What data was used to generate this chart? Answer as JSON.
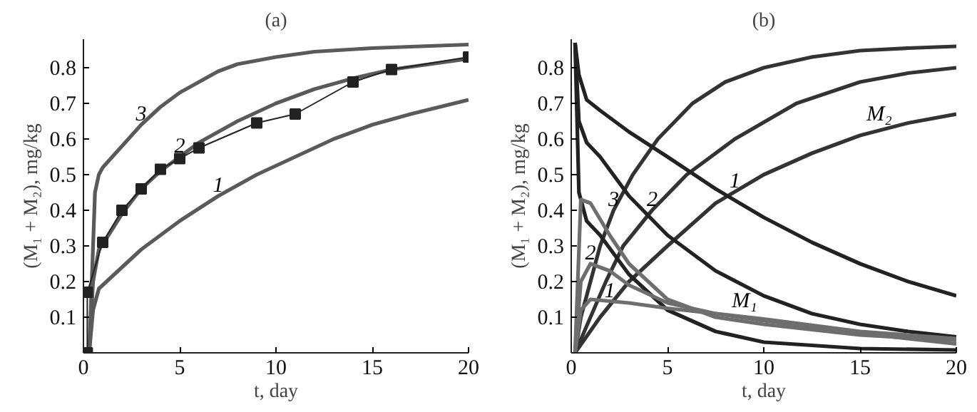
{
  "chart_data": [
    {
      "type": "line",
      "title": "(a)",
      "xlabel": "t, day",
      "ylabel": "(M₁ + M₂), mg/kg",
      "xlim": [
        0,
        20
      ],
      "ylim": [
        0,
        0.88
      ],
      "xticks": [
        0,
        5,
        10,
        15,
        20
      ],
      "yticks": [
        0.1,
        0.2,
        0.3,
        0.4,
        0.5,
        0.6,
        0.7,
        0.8
      ],
      "grid": false,
      "series": [
        {
          "color": "#5a5a5a",
          "x": [
            0.3,
            0.5,
            0.6,
            0.8,
            1,
            2,
            3,
            4,
            5,
            6,
            7,
            8,
            10,
            12,
            15,
            20
          ],
          "values": [
            0,
            0.3,
            0.45,
            0.5,
            0.52,
            0.58,
            0.64,
            0.69,
            0.73,
            0.76,
            0.79,
            0.81,
            0.83,
            0.845,
            0.855,
            0.865
          ]
        },
        {
          "color": "#5a5a5a",
          "x": [
            0.3,
            0.5,
            0.8,
            1.3,
            2,
            3,
            4,
            5,
            6,
            8,
            10,
            12,
            14,
            16,
            18,
            20
          ],
          "values": [
            0,
            0.2,
            0.29,
            0.33,
            0.39,
            0.46,
            0.51,
            0.55,
            0.59,
            0.65,
            0.7,
            0.74,
            0.77,
            0.795,
            0.81,
            0.825
          ]
        },
        {
          "color": "#5a5a5a",
          "x": [
            0.3,
            0.5,
            0.8,
            1.2,
            2,
            3,
            5,
            7,
            9,
            11,
            13,
            15,
            17,
            20
          ],
          "values": [
            0,
            0.12,
            0.18,
            0.2,
            0.24,
            0.29,
            0.37,
            0.44,
            0.5,
            0.55,
            0.6,
            0.64,
            0.67,
            0.71
          ]
        },
        {
          "color": "#222222",
          "marker": "square",
          "x": [
            0.2,
            0.2,
            1,
            2,
            3,
            4,
            5,
            6,
            9,
            11,
            14,
            16,
            20
          ],
          "values": [
            0,
            0.17,
            0.31,
            0.4,
            0.46,
            0.515,
            0.545,
            0.575,
            0.645,
            0.67,
            0.76,
            0.795,
            0.83
          ]
        }
      ],
      "annotations": [
        {
          "text": "3",
          "x": 3,
          "y": 0.64
        },
        {
          "text": "2",
          "x": 5,
          "y": 0.55
        },
        {
          "text": "1",
          "x": 7,
          "y": 0.44
        }
      ]
    },
    {
      "type": "line",
      "title": "(b)",
      "xlabel": "t, day",
      "ylabel": "(M₁ + M₂), mg/kg",
      "xlim": [
        0,
        20
      ],
      "ylim": [
        0,
        0.88
      ],
      "xticks": [
        0,
        5,
        10,
        15,
        20
      ],
      "yticks": [
        0.1,
        0.2,
        0.3,
        0.4,
        0.5,
        0.6,
        0.7,
        0.8
      ],
      "grid": false,
      "series": [
        {
          "color": "#333333",
          "x": [
            0.2,
            0.5,
            1,
            1.5,
            2.2,
            3.2,
            4.5,
            6.3,
            8,
            10,
            12.5,
            15,
            17.5,
            20
          ],
          "values": [
            0,
            0.1,
            0.2,
            0.3,
            0.4,
            0.5,
            0.6,
            0.7,
            0.76,
            0.8,
            0.83,
            0.848,
            0.855,
            0.86
          ]
        },
        {
          "color": "#333333",
          "x": [
            0.2,
            1,
            1.8,
            2.7,
            4.2,
            6,
            8.5,
            11.7,
            15,
            17.5,
            20
          ],
          "values": [
            0,
            0.1,
            0.2,
            0.3,
            0.4,
            0.5,
            0.6,
            0.7,
            0.76,
            0.785,
            0.8
          ]
        },
        {
          "color": "#333333",
          "x": [
            0.2,
            1.5,
            3,
            5,
            7.5,
            10,
            12.5,
            15,
            17.5,
            20
          ],
          "values": [
            0,
            0.1,
            0.2,
            0.3,
            0.42,
            0.5,
            0.56,
            0.61,
            0.645,
            0.67
          ]
        },
        {
          "color": "#222222",
          "x": [
            0.2,
            0.4,
            0.8,
            1.5,
            3,
            5,
            7.5,
            10,
            12.5,
            15,
            17.5,
            20
          ],
          "values": [
            0.87,
            0.78,
            0.71,
            0.68,
            0.62,
            0.55,
            0.46,
            0.38,
            0.31,
            0.25,
            0.2,
            0.16
          ]
        },
        {
          "color": "#222222",
          "x": [
            0.2,
            0.4,
            0.8,
            1.5,
            3,
            5,
            7.5,
            10,
            12.5,
            15,
            17.5,
            20
          ],
          "values": [
            0.87,
            0.65,
            0.59,
            0.55,
            0.44,
            0.33,
            0.23,
            0.16,
            0.11,
            0.08,
            0.06,
            0.045
          ]
        },
        {
          "color": "#222222",
          "x": [
            0.2,
            0.4,
            0.8,
            1.5,
            3,
            5,
            7.5,
            10,
            15,
            20
          ],
          "values": [
            0.87,
            0.45,
            0.37,
            0.33,
            0.22,
            0.12,
            0.06,
            0.03,
            0.012,
            0.008
          ]
        },
        {
          "color": "#6e6e6e",
          "x": [
            0.2,
            0.5,
            1,
            2,
            3,
            5,
            7.5,
            10,
            15,
            20
          ],
          "values": [
            0,
            0.43,
            0.42,
            0.33,
            0.25,
            0.15,
            0.1,
            0.08,
            0.05,
            0.035
          ]
        },
        {
          "color": "#6e6e6e",
          "x": [
            0.2,
            0.5,
            1,
            2,
            3,
            5,
            7.5,
            10,
            15,
            20
          ],
          "values": [
            0,
            0.2,
            0.25,
            0.23,
            0.19,
            0.14,
            0.11,
            0.09,
            0.055,
            0.025
          ]
        },
        {
          "color": "#6e6e6e",
          "x": [
            0.2,
            0.5,
            1,
            2,
            3,
            5,
            7.5,
            10,
            15,
            20
          ],
          "values": [
            0,
            0.12,
            0.15,
            0.145,
            0.14,
            0.125,
            0.11,
            0.095,
            0.06,
            0.04
          ]
        }
      ],
      "annotations": [
        {
          "text": "M₂",
          "x": 16,
          "y": 0.624
        },
        {
          "text": "1",
          "x": 8.5,
          "y": 0.452
        },
        {
          "text": "2",
          "x": 4.2,
          "y": 0.4
        },
        {
          "text": "3",
          "x": 2.2,
          "y": 0.4
        },
        {
          "text": "2",
          "x": 1.0,
          "y": 0.25
        },
        {
          "text": "1",
          "x": 2.0,
          "y": 0.145
        },
        {
          "text": "M₁",
          "x": 9.0,
          "y": 0.101
        }
      ]
    }
  ]
}
